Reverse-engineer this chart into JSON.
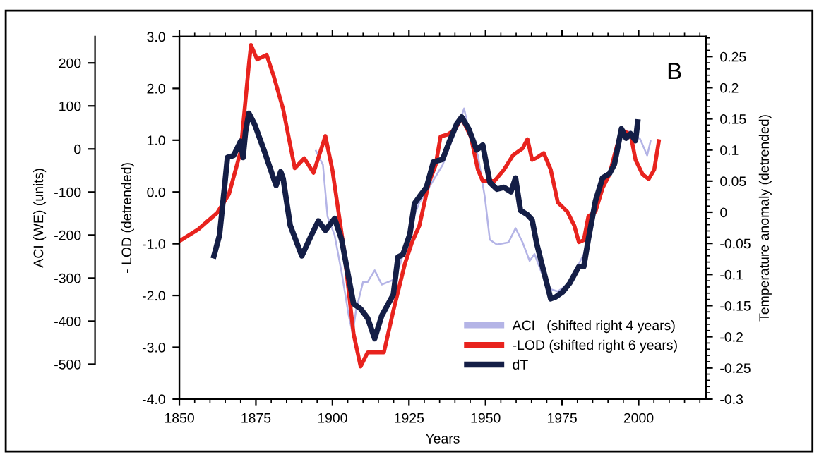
{
  "chart_data": {
    "type": "line",
    "xlabel": "Years",
    "ylabel": "- LOD (detrended)",
    "y2label": "Temperature anomaly (detrended)",
    "y3label": "ACI (WE) (units)",
    "annotations": [
      "B"
    ],
    "xlim": [
      1850,
      2022
    ],
    "xticks": [
      1850,
      1875,
      1900,
      1925,
      1950,
      1975,
      2000
    ],
    "ylim": [
      -4,
      3
    ],
    "yticks": [
      {
        "value": -4,
        "label": "-4.0"
      },
      {
        "value": -3,
        "label": "-3.0"
      },
      {
        "value": -2,
        "label": "-2.0"
      },
      {
        "value": -1,
        "label": "-1.0"
      },
      {
        "value": 0,
        "label": "0.0"
      },
      {
        "value": 1,
        "label": "1.0"
      },
      {
        "value": 2,
        "label": "2.0"
      },
      {
        "value": 3,
        "label": "3.0"
      }
    ],
    "y2lim": [
      -0.3,
      0.282
    ],
    "y2ticks": [
      -0.3,
      -0.25,
      -0.2,
      -0.15,
      -0.1,
      -0.05,
      0,
      0.05,
      0.1,
      0.15,
      0.2,
      0.25
    ],
    "y3lim": [
      -581,
      261
    ],
    "y3ticks": [
      -500,
      -400,
      -300,
      -200,
      -100,
      0,
      100,
      200
    ],
    "legend": "bottom right",
    "series": [
      {
        "name": "ACI   (shifted right 4 years)",
        "color": "#b4b4e6",
        "axis": "y3",
        "x": [
          1894.6,
          1896.9,
          1898.4,
          1900.7,
          1903.0,
          1905.3,
          1906.6,
          1907.7,
          1910.0,
          1911.5,
          1913.8,
          1916.1,
          1919.9,
          1922.2,
          1926.0,
          1928.4,
          1931.4,
          1936.0,
          1938.3,
          1941.4,
          1943.0,
          1944.5,
          1947.5,
          1949.8,
          1951.4,
          1953.7,
          1957.5,
          1959.8,
          1962.1,
          1964.4,
          1966.0,
          1968.3,
          1971.3,
          1973.6,
          1976.7,
          1979.8,
          1982.1,
          1985.2,
          1988.2,
          1991.3,
          1994.4,
          1997.4,
          2000.5,
          2002.8,
          2003.9
        ],
        "values": [
          -4,
          -37,
          -157,
          -200,
          -287,
          -386,
          -429,
          -375,
          -309,
          -309,
          -282,
          -315,
          -304,
          -266,
          -168,
          -124,
          -91,
          -37,
          7,
          61,
          94,
          45,
          -15,
          -113,
          -211,
          -222,
          -217,
          -184,
          -217,
          -260,
          -244,
          -287,
          -326,
          -331,
          -315,
          -277,
          -244,
          -157,
          -80,
          -37,
          40,
          40,
          23,
          -15,
          18
        ]
      },
      {
        "name": "-LOD (shifted right 6 years)",
        "color": "#e8231e",
        "axis": "y",
        "x": [
          1850,
          1856.2,
          1862.4,
          1866.2,
          1870.0,
          1872.8,
          1873.4,
          1875.4,
          1878.5,
          1880.8,
          1883.9,
          1887.7,
          1890.8,
          1893.8,
          1897.7,
          1900.0,
          1903.8,
          1906.9,
          1909.2,
          1911.5,
          1916.8,
          1919.9,
          1923.7,
          1926.0,
          1928.4,
          1931.4,
          1933.7,
          1935.3,
          1937.6,
          1939.9,
          1942.2,
          1945.2,
          1947.5,
          1949.1,
          1952.9,
          1956.0,
          1959.0,
          1962.1,
          1963.7,
          1965.2,
          1966.7,
          1969.0,
          1971.3,
          1973.6,
          1976.7,
          1979.0,
          1980.5,
          1982.1,
          1983.6,
          1985.9,
          1988.2,
          1990.5,
          1992.1,
          1994.4,
          1997.4,
          1999.0,
          2001.3,
          2003.3,
          2005.1,
          2006.6
        ],
        "values": [
          -0.95,
          -0.72,
          -0.4,
          -0.04,
          0.78,
          2.52,
          2.84,
          2.56,
          2.65,
          2.24,
          1.6,
          0.46,
          0.65,
          0.37,
          1.08,
          0.42,
          -1.13,
          -2.74,
          -3.37,
          -3.1,
          -3.1,
          -2.29,
          -1.38,
          -0.97,
          -0.65,
          0.16,
          0.52,
          1.07,
          1.11,
          1.2,
          1.43,
          1.07,
          0.43,
          0.21,
          0.21,
          0.43,
          0.71,
          0.84,
          1.02,
          0.62,
          0.66,
          0.75,
          0.43,
          -0.2,
          -0.38,
          -0.65,
          -0.97,
          -0.93,
          -0.47,
          -0.38,
          0.07,
          0.34,
          0.71,
          1.2,
          1.11,
          0.62,
          0.34,
          0.25,
          0.43,
          0.98
        ]
      },
      {
        "name": "dT",
        "color": "#141e46",
        "axis": "y2",
        "x": [
          1861.3,
          1863.1,
          1864.7,
          1865.7,
          1867.7,
          1870.0,
          1870.8,
          1871.6,
          1872.7,
          1874.6,
          1877.7,
          1880.8,
          1881.6,
          1883.1,
          1883.9,
          1886.2,
          1890.0,
          1893.1,
          1895.4,
          1897.7,
          1900.7,
          1903.0,
          1905.3,
          1906.9,
          1909.2,
          1911.5,
          1913.8,
          1916.1,
          1919.9,
          1921.4,
          1923.0,
          1925.3,
          1926.8,
          1928.4,
          1930.7,
          1933.0,
          1936.0,
          1938.3,
          1940.6,
          1942.2,
          1944.5,
          1947.1,
          1949.1,
          1951.4,
          1953.7,
          1956.0,
          1958.3,
          1959.8,
          1961.4,
          1963.7,
          1965.2,
          1966.7,
          1969.0,
          1971.3,
          1972.9,
          1975.2,
          1977.5,
          1980.5,
          1982.1,
          1983.6,
          1985.9,
          1988.2,
          1990.5,
          1992.1,
          1994.4,
          1995.9,
          1997.4,
          1999.0,
          1999.7
        ],
        "values": [
          -0.07,
          -0.037,
          0.038,
          0.088,
          0.091,
          0.114,
          0.088,
          0.129,
          0.159,
          0.141,
          0.099,
          0.054,
          0.043,
          0.065,
          0.054,
          -0.021,
          -0.07,
          -0.037,
          -0.014,
          -0.029,
          -0.01,
          -0.044,
          -0.105,
          -0.147,
          -0.155,
          -0.17,
          -0.203,
          -0.166,
          -0.132,
          -0.072,
          -0.068,
          -0.035,
          0.014,
          0.025,
          0.04,
          0.081,
          0.085,
          0.115,
          0.142,
          0.153,
          0.134,
          0.1,
          0.108,
          0.048,
          0.037,
          0.04,
          0.033,
          0.055,
          0.003,
          -0.004,
          -0.012,
          -0.05,
          -0.095,
          -0.139,
          -0.136,
          -0.128,
          -0.114,
          -0.087,
          -0.087,
          -0.043,
          0.018,
          0.055,
          0.062,
          0.077,
          0.134,
          0.119,
          0.126,
          0.115,
          0.145
        ]
      }
    ]
  }
}
